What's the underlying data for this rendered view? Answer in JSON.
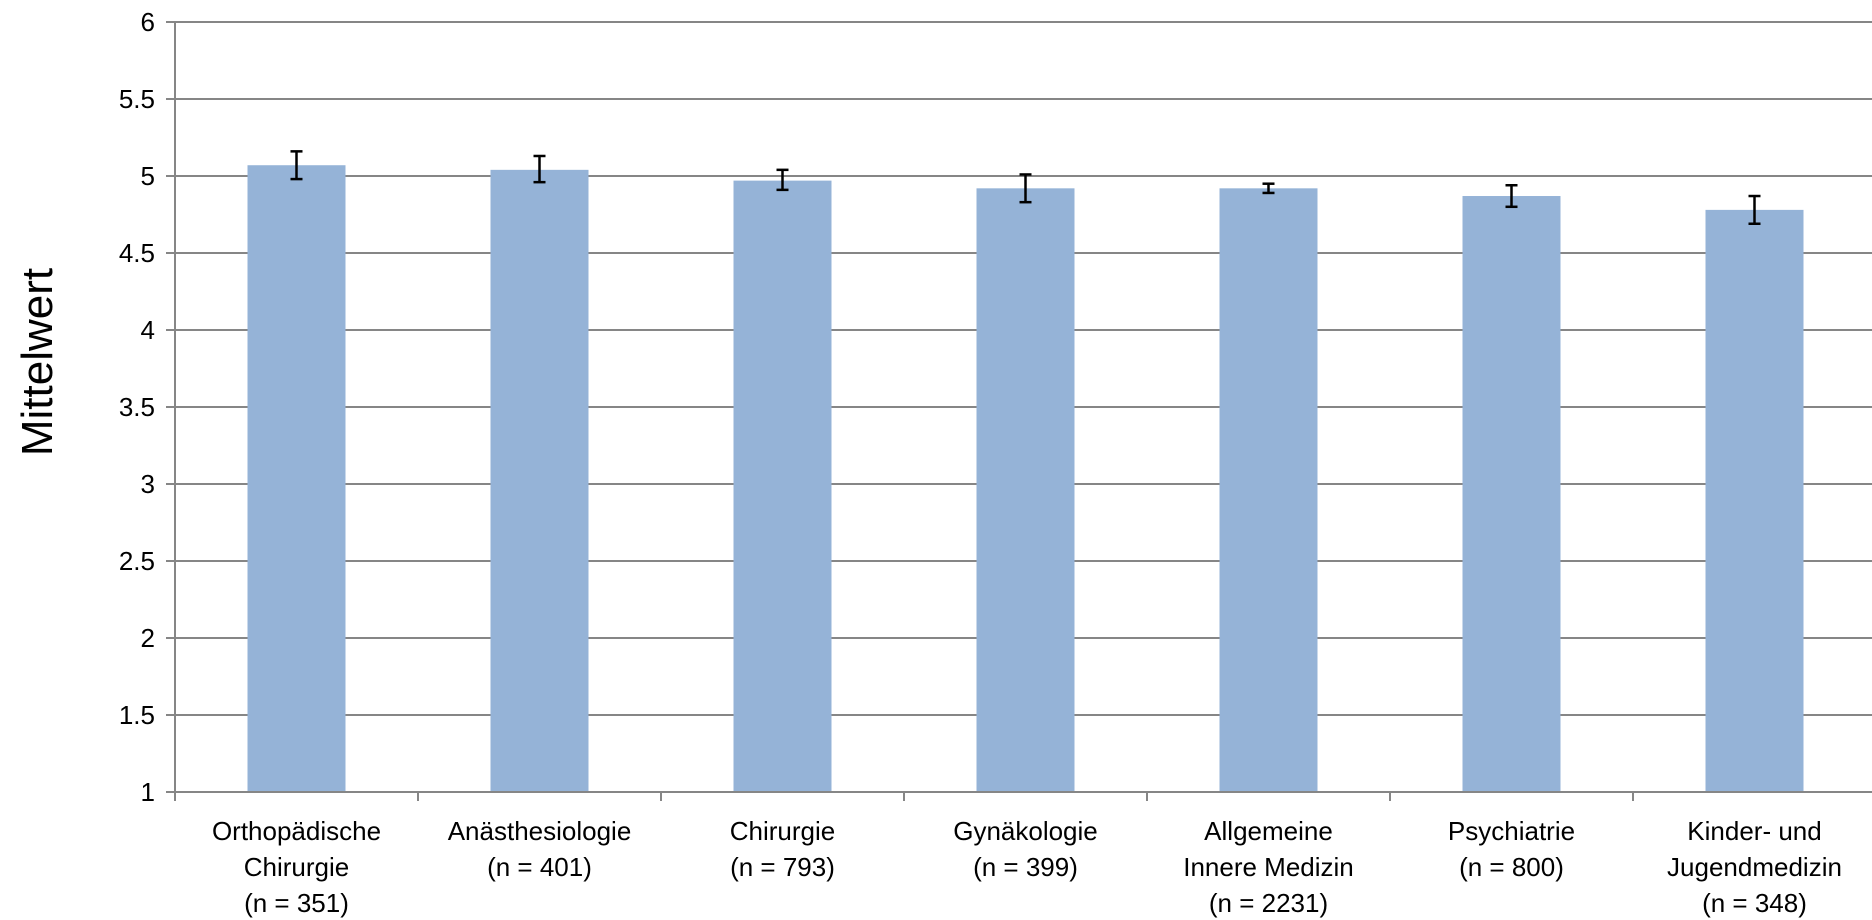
{
  "chart_data": {
    "type": "bar",
    "categories": [
      [
        "Orthopädische",
        "Chirurgie",
        "(n = 351)"
      ],
      [
        "Anästhesiologie",
        "(n = 401)"
      ],
      [
        "Chirurgie",
        "(n = 793)"
      ],
      [
        "Gynäkologie",
        "(n = 399)"
      ],
      [
        "Allgemeine",
        "Innere Medizin",
        "(n = 2231)"
      ],
      [
        "Psychiatrie",
        "(n = 800)"
      ],
      [
        "Kinder- und",
        "Jugendmedizin",
        "(n = 348)"
      ]
    ],
    "values": [
      5.07,
      5.04,
      4.97,
      4.92,
      4.92,
      4.87,
      4.78
    ],
    "error_low": [
      4.98,
      4.96,
      4.91,
      4.83,
      4.89,
      4.8,
      4.69
    ],
    "error_high": [
      5.16,
      5.13,
      5.04,
      5.01,
      4.95,
      4.94,
      4.87
    ],
    "ylabel": "Mittelwert",
    "xlabel": "",
    "ylim": [
      1,
      6
    ],
    "yticks": [
      "1",
      "1.5",
      "2",
      "2.5",
      "3",
      "3.5",
      "4",
      "4.5",
      "5",
      "5.5",
      "6"
    ],
    "grid": true,
    "bar_color": "#95b3d7"
  }
}
